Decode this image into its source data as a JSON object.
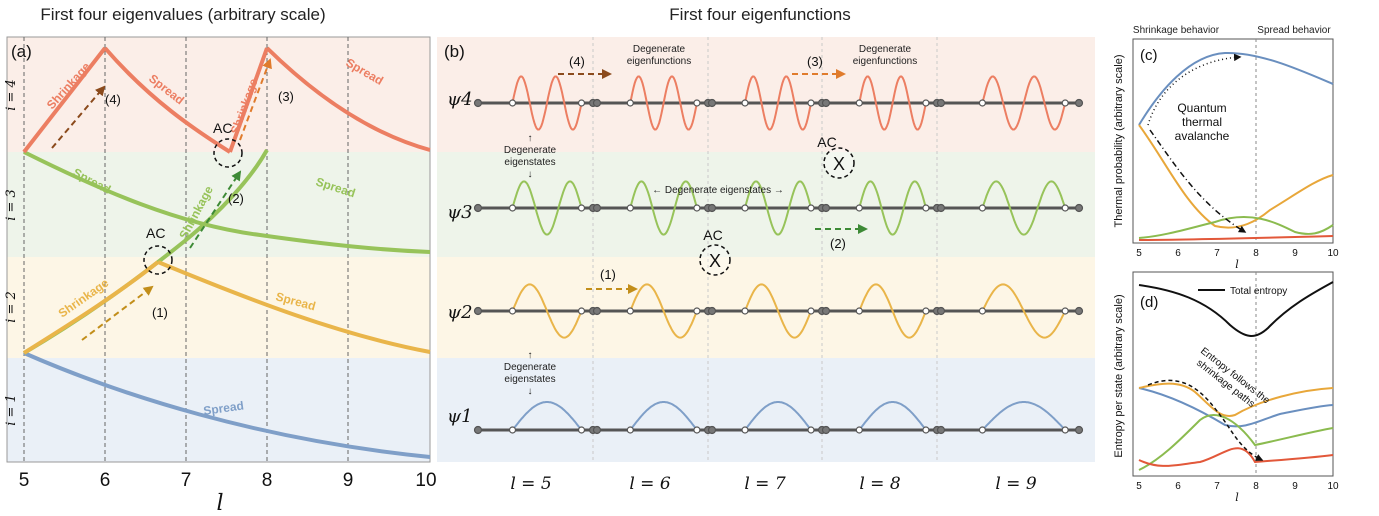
{
  "panel_a": {
    "title": "First four eigenvalues (arbitrary scale)",
    "label": "(a)",
    "xlabel": "l",
    "xticks": [
      "5",
      "6",
      "7",
      "8",
      "9",
      "10"
    ],
    "bands": [
      "i = 4",
      "i = 3",
      "i = 2",
      "i = 1"
    ],
    "shrinkage": "Shrinkage",
    "spread": "Spread",
    "ac": "AC",
    "paths": [
      "(1)",
      "(2)",
      "(3)",
      "(4)"
    ],
    "colors": {
      "i1": "#7f9fc8",
      "i2": "#e9b54a",
      "i3": "#97c35a",
      "i4": "#ec7e62"
    }
  },
  "panel_b": {
    "title": "First four eigenfunctions",
    "label": "(b)",
    "rows": [
      "ψ4",
      "ψ3",
      "ψ2",
      "ψ1"
    ],
    "columns": [
      "l = 5",
      "l = 6",
      "l = 7",
      "l = 8",
      "l = 9"
    ],
    "degenerate_eigenfunctions": [
      "Degenerate",
      "eigenfunctions"
    ],
    "degenerate_eigenstates": [
      "↑",
      "Degenerate",
      "eigenstates",
      "↓"
    ],
    "degenerate_horizontal": "← Degenerate eigenstates →",
    "ac": "AC",
    "x_mark": "X",
    "paths": [
      "(1)",
      "(2)",
      "(3)",
      "(4)"
    ]
  },
  "panel_c": {
    "label": "(c)",
    "header_left": "Shrinkage behavior",
    "header_right": "Spread behavior",
    "ylabel": "Thermal probability (arbitrary scale)",
    "xlabel": "l",
    "xticks": [
      "5",
      "6",
      "7",
      "8",
      "9",
      "10"
    ],
    "annotation": [
      "Quantum",
      "thermal",
      "avalanche"
    ]
  },
  "panel_d": {
    "label": "(d)",
    "ylabel": "Entropy per state (arbitrary scale)",
    "xlabel": "l",
    "xticks": [
      "5",
      "6",
      "7",
      "8",
      "9",
      "10"
    ],
    "legend": "Total entropy",
    "annotation": [
      "Entropy follows the",
      "shrinkage paths"
    ]
  }
}
